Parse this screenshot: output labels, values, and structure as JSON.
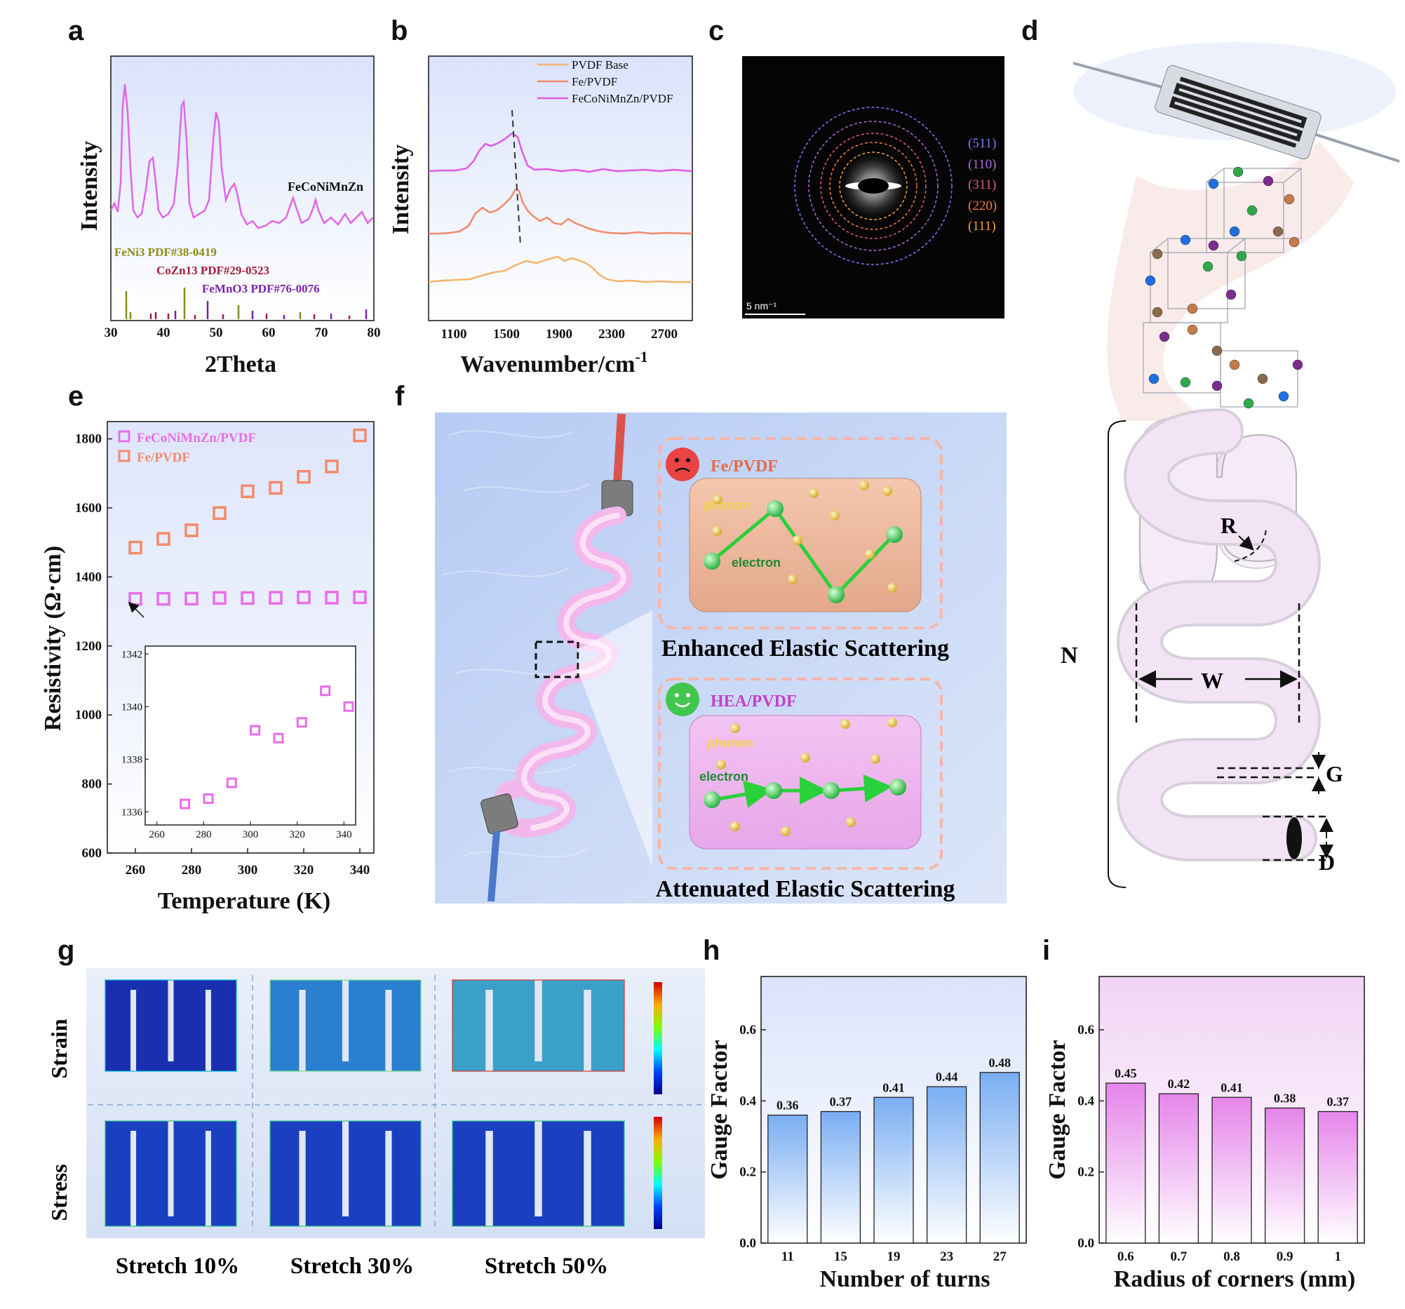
{
  "panels": {
    "a": {
      "letter": "a"
    },
    "b": {
      "letter": "b"
    },
    "c": {
      "letter": "c"
    },
    "d": {
      "letter": "d"
    },
    "e": {
      "letter": "e"
    },
    "f": {
      "letter": "f"
    },
    "g": {
      "letter": "g"
    },
    "h": {
      "letter": "h"
    },
    "i": {
      "letter": "i"
    }
  },
  "xrd": {
    "xlabel": "2Theta",
    "ylabel": "Intensity",
    "xticks": [
      "30",
      "40",
      "50",
      "60",
      "70",
      "80"
    ],
    "series_label": "FeCoNiMnZn",
    "pdf_refs": [
      {
        "label": "FeNi3 PDF#38-0419",
        "color": "#8b8b1a"
      },
      {
        "label": "CoZn13 PDF#29-0523",
        "color": "#a31d3a"
      },
      {
        "label": "FeMnO3 PDF#76-0076",
        "color": "#7a22a8"
      }
    ],
    "curve_color": "#e066e6"
  },
  "raman": {
    "xlabel": "Wavenumber/cm",
    "xlabel_sup": "-1",
    "ylabel": "Intensity",
    "xticks": [
      "1100",
      "1500",
      "1900",
      "2300",
      "2700"
    ],
    "legend": [
      {
        "label": "PVDF Base",
        "color": "#f5b36b"
      },
      {
        "label": "Fe/PVDF",
        "color": "#f2896b"
      },
      {
        "label": "FeCoNiMnZn/PVDF",
        "color": "#e05ae8"
      }
    ]
  },
  "saed": {
    "scale_label": "5 nm⁻¹",
    "rings": [
      {
        "label": "(511)",
        "color": "#7b7bff"
      },
      {
        "label": "(110)",
        "color": "#b06ad8"
      },
      {
        "label": "(311)",
        "color": "#e35c8a"
      },
      {
        "label": "(220)",
        "color": "#f27b45"
      },
      {
        "label": "(111)",
        "color": "#f4a23a"
      }
    ]
  },
  "schematic_d": {
    "labels": {
      "R": "R",
      "N": "N",
      "W": "W",
      "G": "G",
      "D": "D"
    }
  },
  "schematic_f": {
    "top_title": "Fe/PVDF",
    "top_phonon": "phonon",
    "top_electron": "electron",
    "top_caption": "Enhanced Elastic Scattering",
    "bottom_title": "HEA/PVDF",
    "bottom_phonon": "phonon",
    "bottom_electron": "electron",
    "bottom_caption": "Attenuated Elastic Scattering"
  },
  "fea": {
    "row_labels": [
      "Strain",
      "Stress"
    ],
    "col_labels": [
      "Stretch 10%",
      "Stretch 30%",
      "Stretch 50%"
    ]
  },
  "chart_data": [
    {
      "type": "scatter",
      "panel": "e",
      "xlabel": "Temperature (K)",
      "ylabel": "Resistivity (Ω·cm)",
      "xlim": [
        250,
        345
      ],
      "ylim": [
        600,
        1850
      ],
      "xticks": [
        260,
        280,
        300,
        320,
        340
      ],
      "yticks": [
        600,
        800,
        1000,
        1200,
        1400,
        1600,
        1800
      ],
      "series": [
        {
          "name": "FeCoNiMnZn/PVDF",
          "color": "#e86ee8",
          "x": [
            260,
            270,
            280,
            290,
            300,
            310,
            320,
            330,
            340
          ],
          "y": [
            1336.3,
            1336.5,
            1337.1,
            1339.1,
            1338.8,
            1339.4,
            1340.6,
            1340.0,
            1341.0
          ]
        },
        {
          "name": "Fe/PVDF",
          "color": "#f28a6a",
          "x": [
            260,
            270,
            280,
            290,
            300,
            310,
            320,
            330,
            340
          ],
          "y": [
            1485,
            1510,
            1535,
            1585,
            1648,
            1658,
            1690,
            1720,
            1810
          ]
        }
      ],
      "inset": {
        "xlim": [
          255,
          345
        ],
        "ylim": [
          1335.5,
          1342.3
        ],
        "xticks": [
          260,
          280,
          300,
          320,
          340
        ],
        "yticks": [
          1336,
          1338,
          1340,
          1342
        ],
        "x": [
          272,
          282,
          292,
          302,
          312,
          322,
          332,
          342
        ],
        "y": [
          1336.3,
          1336.5,
          1337.1,
          1339.1,
          1338.8,
          1339.4,
          1340.6,
          1340.0
        ]
      }
    },
    {
      "type": "bar",
      "panel": "h",
      "xlabel": "Number of turns",
      "ylabel": "Gauge Factor",
      "categories": [
        "11",
        "15",
        "19",
        "23",
        "27"
      ],
      "values": [
        0.36,
        0.37,
        0.41,
        0.44,
        0.48
      ],
      "value_labels": [
        "0.36",
        "0.37",
        "0.41",
        "0.44",
        "0.48"
      ],
      "ylim": [
        0,
        0.75
      ],
      "yticks": [
        "0.0",
        "0.2",
        "0.4",
        "0.6"
      ],
      "color": "#7fb2f2"
    },
    {
      "type": "bar",
      "panel": "i",
      "xlabel": "Radius of corners (mm)",
      "ylabel": "Gauge Factor",
      "categories": [
        "0.6",
        "0.7",
        "0.8",
        "0.9",
        "1"
      ],
      "values": [
        0.45,
        0.42,
        0.41,
        0.38,
        0.37
      ],
      "value_labels": [
        "0.45",
        "0.42",
        "0.41",
        "0.38",
        "0.37"
      ],
      "ylim": [
        0,
        0.75
      ],
      "yticks": [
        "0.0",
        "0.2",
        "0.4",
        "0.6"
      ],
      "color": "#e98cec"
    }
  ]
}
